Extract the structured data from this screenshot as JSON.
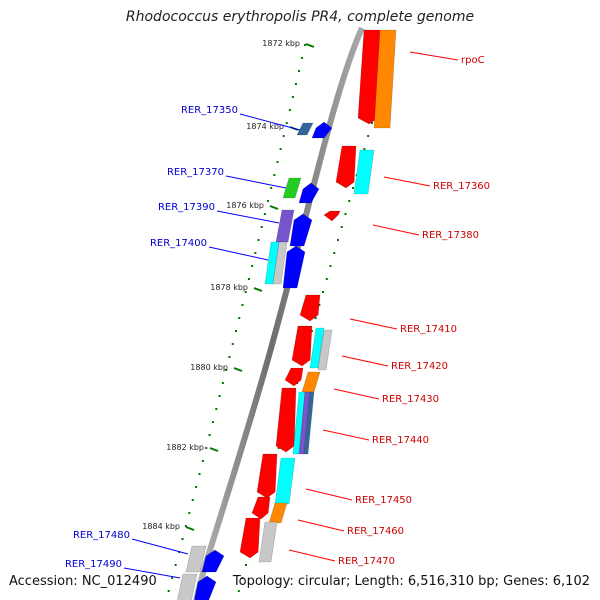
{
  "title": "Rhodococcus erythropolis PR4, complete genome",
  "accession": "Accession: NC_012490",
  "topology": "Topology: circular; Length: 6,516,310 bp; Genes: 6,102",
  "ticks": [
    "1872 kbp",
    "1874 kbp",
    "1876 kbp",
    "1878 kbp",
    "1880 kbp",
    "1882 kbp",
    "1884 kbp"
  ],
  "genes_left": [
    "RER_17350",
    "RER_17370",
    "RER_17390",
    "RER_17400",
    "RER_17480",
    "RER_17490"
  ],
  "genes_right": [
    "rpoC",
    "RER_17360",
    "RER_17380",
    "RER_17410",
    "RER_17420",
    "RER_17430",
    "RER_17440",
    "RER_17450",
    "RER_17460",
    "RER_17470"
  ],
  "colors": {
    "backbone": "#888888",
    "forward_strand": "#ff0000",
    "reverse_strand": "#0000ff",
    "tick_marks": "#007700",
    "feature_cyan": "#00ffff",
    "feature_orange": "#ff8800",
    "feature_green": "#22cc22",
    "feature_purple": "#7755cc",
    "feature_gray": "#c8c8c8",
    "feature_steel": "#336699"
  }
}
